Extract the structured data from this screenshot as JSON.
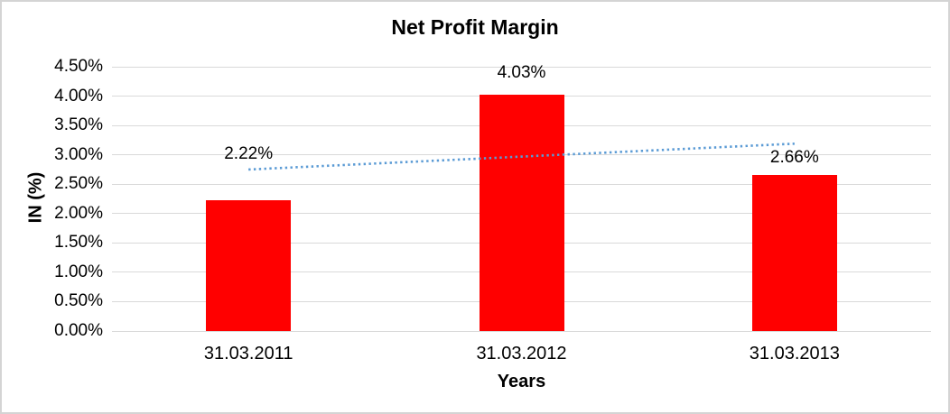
{
  "chart_data": {
    "type": "bar",
    "title": "Net Profit Margin",
    "xlabel": "Years",
    "ylabel": "IN (%)",
    "categories": [
      "31.03.2011",
      "31.03.2012",
      "31.03.2013"
    ],
    "series": [
      {
        "name": "Net Profit Margin",
        "values": [
          2.22,
          4.03,
          2.66
        ]
      }
    ],
    "data_labels": [
      "2.22%",
      "4.03%",
      "2.66%"
    ],
    "y_ticks": [
      {
        "value": 0.0,
        "label": "0.00%"
      },
      {
        "value": 0.5,
        "label": "0.50%"
      },
      {
        "value": 1.0,
        "label": "1.00%"
      },
      {
        "value": 1.5,
        "label": "1.50%"
      },
      {
        "value": 2.0,
        "label": "2.00%"
      },
      {
        "value": 2.5,
        "label": "2.50%"
      },
      {
        "value": 3.0,
        "label": "3.00%"
      },
      {
        "value": 3.5,
        "label": "3.50%"
      },
      {
        "value": 4.0,
        "label": "4.00%"
      },
      {
        "value": 4.5,
        "label": "4.50%"
      }
    ],
    "ylim": [
      0,
      4.5
    ],
    "grid": true,
    "legend": "none",
    "bar_color": "#FF0000",
    "gridline_color": "#D9D9D9",
    "text_color": "#000000",
    "trendline": {
      "type": "linear",
      "style": "dotted",
      "color": "#5B9BD5",
      "start_value": 2.75,
      "end_value": 3.19
    }
  }
}
